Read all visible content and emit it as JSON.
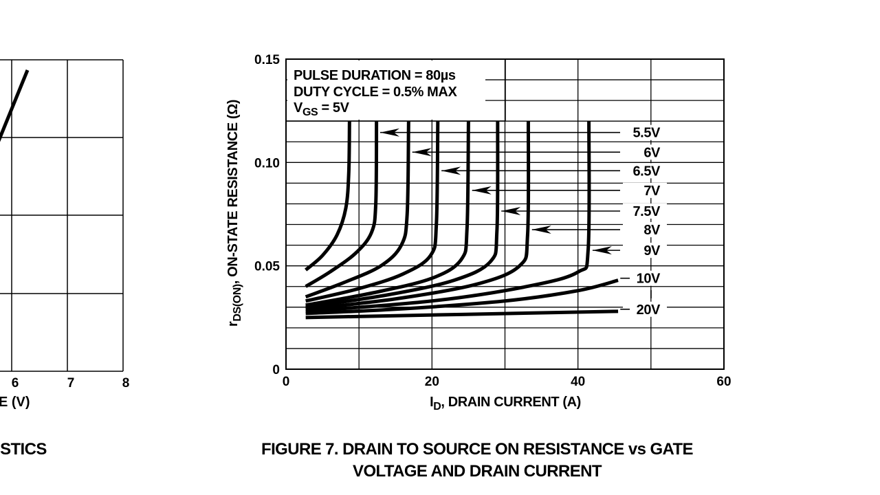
{
  "left_chart_fragment": {
    "x_ticks": [
      "6",
      "7",
      "8"
    ],
    "xlabel_fragment": "E (V)",
    "caption_fragment": "ISTICS"
  },
  "caption": {
    "line1": "FIGURE 7.  DRAIN TO SOURCE ON RESISTANCE vs GATE",
    "line2": "VOLTAGE AND DRAIN CURRENT"
  },
  "chart_data": {
    "type": "line",
    "title": "FIGURE 7. DRAIN TO SOURCE ON RESISTANCE vs GATE VOLTAGE AND DRAIN CURRENT",
    "xlabel": {
      "main": "I",
      "sub": "D",
      "rest": ", DRAIN CURRENT (A)"
    },
    "ylabel": {
      "main": "r",
      "sub": "DS(ON)",
      "rest": ", ON-STATE RESISTANCE (Ω)"
    },
    "xlim": [
      0,
      60
    ],
    "ylim": [
      0,
      0.15
    ],
    "x_ticks": [
      {
        "v": 0,
        "label": "0"
      },
      {
        "v": 20,
        "label": "20"
      },
      {
        "v": 40,
        "label": "40"
      },
      {
        "v": 60,
        "label": "60"
      }
    ],
    "y_ticks": [
      {
        "v": 0,
        "label": "0"
      },
      {
        "v": 0.05,
        "label": "0.05"
      },
      {
        "v": 0.1,
        "label": "0.10"
      },
      {
        "v": 0.15,
        "label": "0.15"
      }
    ],
    "grid": {
      "x_step": 10,
      "y_step": 0.01
    },
    "annotations": {
      "line1": "PULSE DURATION = 80µs",
      "line2": "DUTY CYCLE = 0.5% MAX",
      "line3_main": "V",
      "line3_sub": "GS",
      "line3_rest": " = 5V"
    },
    "series": [
      {
        "name": "5V",
        "points": [
          [
            2.7,
            0.048
          ],
          [
            5,
            0.055
          ],
          [
            7,
            0.065
          ],
          [
            8.2,
            0.078
          ],
          [
            8.6,
            0.095
          ],
          [
            8.7,
            0.12
          ]
        ]
      },
      {
        "name": "5.5V",
        "points": [
          [
            2.7,
            0.04
          ],
          [
            6,
            0.047
          ],
          [
            9.5,
            0.056
          ],
          [
            11.7,
            0.066
          ],
          [
            12.3,
            0.08
          ],
          [
            12.4,
            0.12
          ]
        ],
        "label_r": 0.1145,
        "arrow_i": 12.9
      },
      {
        "name": "6V",
        "points": [
          [
            2.7,
            0.035
          ],
          [
            8,
            0.042
          ],
          [
            13,
            0.05
          ],
          [
            15.8,
            0.06
          ],
          [
            16.6,
            0.075
          ],
          [
            16.8,
            0.12
          ]
        ],
        "label_r": 0.105,
        "arrow_i": 17.3
      },
      {
        "name": "6.5V",
        "points": [
          [
            2.7,
            0.033
          ],
          [
            10,
            0.039
          ],
          [
            16,
            0.046
          ],
          [
            19.8,
            0.055
          ],
          [
            20.6,
            0.07
          ],
          [
            20.8,
            0.12
          ]
        ],
        "label_r": 0.096,
        "arrow_i": 21.3
      },
      {
        "name": "7V",
        "points": [
          [
            2.7,
            0.031
          ],
          [
            12,
            0.037
          ],
          [
            20,
            0.044
          ],
          [
            24,
            0.053
          ],
          [
            24.8,
            0.068
          ],
          [
            25,
            0.12
          ]
        ],
        "label_r": 0.0865,
        "arrow_i": 25.5
      },
      {
        "name": "7.5V",
        "points": [
          [
            2.7,
            0.03
          ],
          [
            14,
            0.036
          ],
          [
            23,
            0.043
          ],
          [
            28,
            0.052
          ],
          [
            28.9,
            0.067
          ],
          [
            29,
            0.12
          ]
        ],
        "label_r": 0.0765,
        "arrow_i": 29.5
      },
      {
        "name": "8V",
        "points": [
          [
            2.7,
            0.029
          ],
          [
            15,
            0.034
          ],
          [
            26,
            0.041
          ],
          [
            32,
            0.05
          ],
          [
            33.1,
            0.065
          ],
          [
            33.2,
            0.12
          ]
        ],
        "label_r": 0.0675,
        "arrow_i": 33.7
      },
      {
        "name": "9V",
        "points": [
          [
            2.7,
            0.028
          ],
          [
            20,
            0.033
          ],
          [
            33,
            0.04
          ],
          [
            40,
            0.047
          ],
          [
            41.4,
            0.058
          ],
          [
            41.5,
            0.12
          ]
        ],
        "label_r": 0.0575,
        "arrow_i": 42.0
      },
      {
        "name": "10V",
        "points": [
          [
            2.7,
            0.027
          ],
          [
            15,
            0.029
          ],
          [
            30,
            0.033
          ],
          [
            40,
            0.038
          ],
          [
            45.5,
            0.043
          ]
        ],
        "label_r": 0.044
      },
      {
        "name": "20V",
        "points": [
          [
            2.7,
            0.025
          ],
          [
            45.5,
            0.028
          ]
        ],
        "label_r": 0.029
      }
    ]
  }
}
